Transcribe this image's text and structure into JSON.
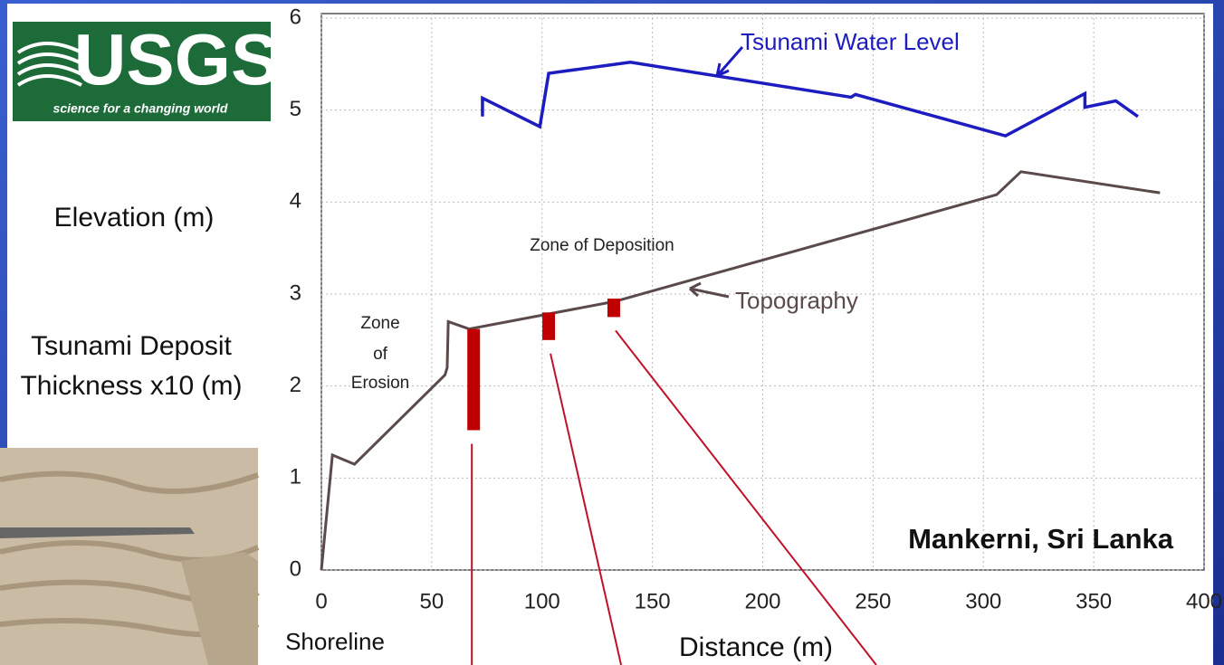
{
  "chart_data": {
    "type": "line",
    "xlabel": "Distance (m)",
    "ylabel": "Elevation (m)",
    "ylabel2": [
      "Tsunami Deposit",
      "Thickness x10 (m)"
    ],
    "xlim": [
      0,
      400
    ],
    "ylim": [
      0,
      6
    ],
    "xticks": [
      0,
      50,
      100,
      150,
      200,
      250,
      300,
      350,
      400
    ],
    "yticks": [
      0,
      1,
      2,
      3,
      4,
      5,
      6
    ],
    "grid": true,
    "series": [
      {
        "name": "Tsunami Water Level",
        "color": "#1c1cc0",
        "x": [
          73,
          73,
          99,
          103,
          140,
          240,
          242,
          310,
          346,
          346,
          360,
          370
        ],
        "values": [
          4.93,
          5.13,
          4.82,
          5.4,
          5.52,
          5.14,
          5.17,
          4.72,
          5.18,
          5.03,
          5.1,
          4.93
        ]
      },
      {
        "name": "Topography",
        "color": "#5a4a4a",
        "x": [
          0,
          5,
          15,
          56,
          57,
          57.5,
          67,
          133,
          306,
          317,
          380
        ],
        "values": [
          0,
          1.25,
          1.15,
          2.12,
          2.2,
          2.7,
          2.62,
          2.92,
          4.08,
          4.33,
          4.1
        ]
      }
    ],
    "deposits": {
      "color": "#c00000",
      "x": [
        69,
        103,
        132.5
      ],
      "top": [
        2.62,
        2.8,
        2.95
      ],
      "thickness": [
        1.1,
        0.3,
        0.2
      ]
    },
    "deposition_label": "Zone of Deposition",
    "erosion_label": [
      "Zone",
      "of",
      "Erosion"
    ],
    "location": "Mankerni, Sri Lanka",
    "shoreline_label": "Shoreline",
    "logo": {
      "title": "USGS",
      "tagline": "science for a changing world"
    }
  }
}
